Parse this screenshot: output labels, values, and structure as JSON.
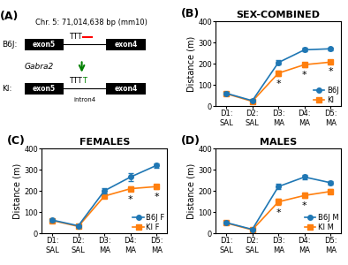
{
  "chart_data": [
    {
      "type": "diagram",
      "subtitle": "(A)",
      "annotations": [
        "Chr. 5: 71,014,638 bp (mm10)",
        "B6J:",
        "KI:",
        "Gabra2",
        "intron4",
        "exon5",
        "exon4",
        "TTT",
        "T"
      ],
      "colors": [
        "red",
        "green"
      ]
    },
    {
      "type": "line",
      "title": "SEX-COMBINED",
      "subtitle": "(B)",
      "ylabel": "Distance (m)",
      "categories": [
        "D1:\nSAL",
        "D2:\nSAL",
        "D3:\nMA",
        "D4:\nMA",
        "D5:\nMA"
      ],
      "series": [
        {
          "name": "B6J",
          "marker": "circle",
          "values": [
            60,
            25,
            205,
            265,
            270
          ],
          "errors": [
            5,
            3,
            10,
            8,
            7
          ]
        },
        {
          "name": "KI",
          "marker": "square",
          "values": [
            58,
            22,
            155,
            195,
            207
          ],
          "errors": [
            5,
            3,
            12,
            10,
            8
          ]
        }
      ],
      "ylim": [
        0,
        400
      ],
      "yticks": [
        0,
        100,
        200,
        300,
        400
      ],
      "legend": "lower right",
      "annotations": [
        {
          "text": "*",
          "x": 2
        },
        {
          "text": "*",
          "x": 3
        },
        {
          "text": "*",
          "x": 4
        }
      ]
    },
    {
      "type": "line",
      "title": "FEMALES",
      "subtitle": "(C)",
      "ylabel": "Distance (m)",
      "categories": [
        "D1:\nSAL",
        "D2:\nSAL",
        "D3:\nMA",
        "D4:\nMA",
        "D5:\nMA"
      ],
      "series": [
        {
          "name": "B6J F",
          "marker": "circle",
          "values": [
            62,
            35,
            200,
            265,
            320
          ],
          "errors": [
            6,
            4,
            12,
            20,
            10
          ]
        },
        {
          "name": "KI F",
          "marker": "square",
          "values": [
            60,
            32,
            175,
            210,
            220
          ],
          "errors": [
            5,
            3,
            10,
            12,
            10
          ]
        }
      ],
      "ylim": [
        0,
        400
      ],
      "yticks": [
        0,
        100,
        200,
        300,
        400
      ],
      "legend": "lower right",
      "annotations": [
        {
          "text": "*",
          "x": 3
        },
        {
          "text": "*",
          "x": 4
        }
      ]
    },
    {
      "type": "line",
      "title": "MALES",
      "subtitle": "(D)",
      "ylabel": "Distance (m)",
      "categories": [
        "D1:\nSAL",
        "D2:\nSAL",
        "D3:\nMA",
        "D4:\nMA",
        "D5:\nMA"
      ],
      "series": [
        {
          "name": "B6J M",
          "marker": "circle",
          "values": [
            50,
            18,
            220,
            265,
            238
          ],
          "errors": [
            5,
            3,
            12,
            10,
            8
          ]
        },
        {
          "name": "KI M",
          "marker": "square",
          "values": [
            48,
            16,
            148,
            178,
            197
          ],
          "errors": [
            5,
            3,
            15,
            12,
            10
          ]
        }
      ],
      "ylim": [
        0,
        400
      ],
      "yticks": [
        0,
        100,
        200,
        300,
        400
      ],
      "legend": "lower right",
      "annotations": [
        {
          "text": "*",
          "x": 2
        },
        {
          "text": "*",
          "x": 3
        }
      ]
    }
  ]
}
